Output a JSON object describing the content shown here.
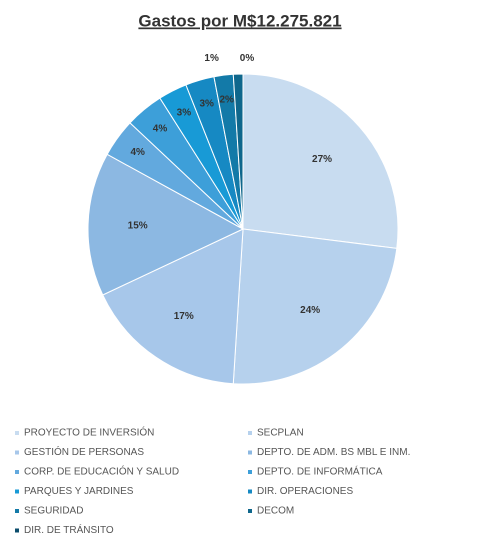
{
  "chart_data": {
    "type": "pie",
    "title": "Gastos por M$12.275.821",
    "categories": [
      "PROYECTO DE INVERSIÓN",
      "SECPLAN",
      "GESTIÓN DE PERSONAS",
      "DEPTO. DE ADM. BS MBL E INM.",
      "CORP. DE EDUCACIÓN Y SALUD",
      "DEPTO. DE INFORMÁTICA",
      "PARQUES Y JARDINES",
      "DIR. OPERACIONES",
      "SEGURIDAD",
      "DECOM",
      "DIR. DE TRÁNSITO"
    ],
    "values": [
      27,
      24,
      17,
      15,
      4,
      4,
      3,
      3,
      2,
      1,
      0
    ],
    "value_labels": [
      "27%",
      "24%",
      "17%",
      "15%",
      "4%",
      "4%",
      "3%",
      "3%",
      "2%",
      "1%",
      "0%"
    ],
    "colors": [
      "#c8dcf0",
      "#b6d1ed",
      "#a7c7ea",
      "#8cb8e2",
      "#62a9de",
      "#3d9fd9",
      "#189ad6",
      "#1689c3",
      "#137aa8",
      "#0f678c",
      "#0b4d6c"
    ],
    "legend": "bottom"
  }
}
